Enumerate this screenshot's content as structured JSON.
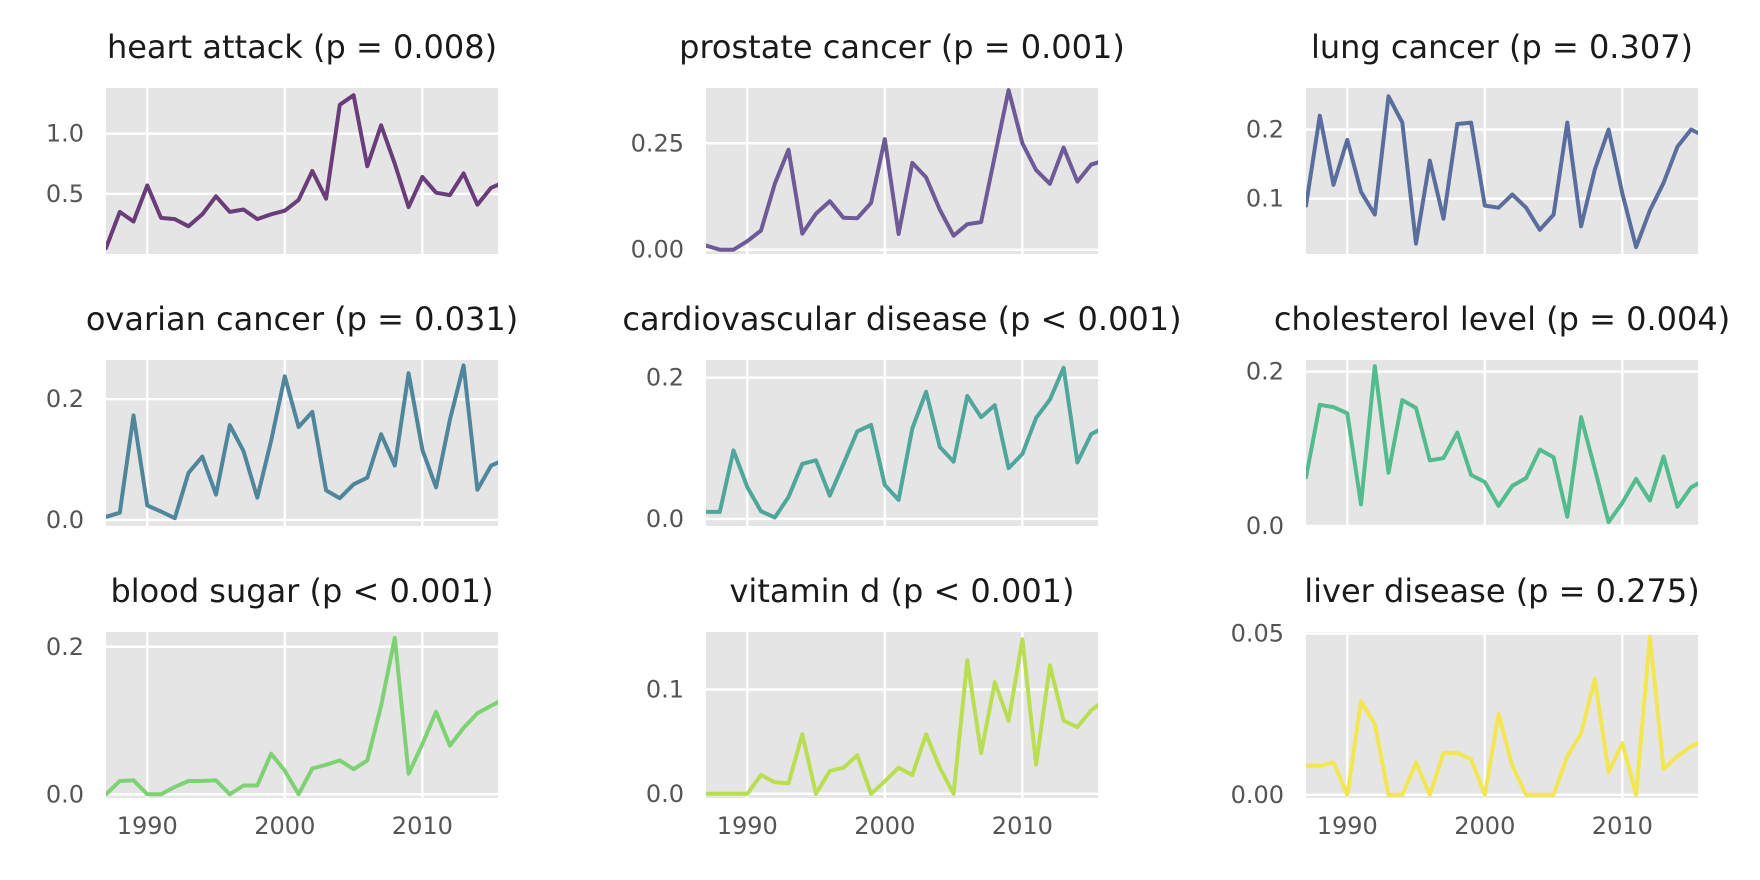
{
  "chart_data": [
    {
      "type": "line",
      "title": "heart attack (p = 0.008)",
      "color": "#6a3d7a",
      "x_range": [
        1987,
        2015.5
      ],
      "ylim": [
        0.0,
        1.38
      ],
      "y_ticks": [
        {
          "value": 0.5,
          "label": "0.5"
        },
        {
          "value": 1.0,
          "label": "1.0"
        }
      ],
      "x_ticks": [
        {
          "value": 1990,
          "label": ""
        },
        {
          "value": 2000,
          "label": ""
        },
        {
          "value": 2010,
          "label": ""
        }
      ],
      "x": [
        1987,
        1988,
        1989,
        1990,
        1991,
        1992,
        1993,
        1994,
        1995,
        1996,
        1997,
        1998,
        1999,
        2000,
        2001,
        2002,
        2003,
        2004,
        2005,
        2006,
        2007,
        2008,
        2009,
        2010,
        2011,
        2012,
        2013,
        2014,
        2015,
        2016
      ],
      "y": [
        0.05,
        0.35,
        0.27,
        0.57,
        0.3,
        0.29,
        0.23,
        0.33,
        0.48,
        0.35,
        0.37,
        0.29,
        0.33,
        0.36,
        0.45,
        0.69,
        0.46,
        1.24,
        1.32,
        0.73,
        1.07,
        0.75,
        0.39,
        0.64,
        0.51,
        0.49,
        0.67,
        0.41,
        0.55,
        0.6
      ]
    },
    {
      "type": "line",
      "title": "prostate cancer (p = 0.001)",
      "color": "#6d5a96",
      "x_range": [
        1987,
        2015.5
      ],
      "ylim": [
        -0.01,
        0.38
      ],
      "y_ticks": [
        {
          "value": 0.0,
          "label": "0.00"
        },
        {
          "value": 0.25,
          "label": "0.25"
        }
      ],
      "x_ticks": [
        {
          "value": 1990,
          "label": ""
        },
        {
          "value": 2000,
          "label": ""
        },
        {
          "value": 2010,
          "label": ""
        }
      ],
      "x": [
        1987,
        1988,
        1989,
        1990,
        1991,
        1992,
        1993,
        1994,
        1995,
        1996,
        1997,
        1998,
        1999,
        2000,
        2001,
        2002,
        2003,
        2004,
        2005,
        2006,
        2007,
        2008,
        2009,
        2010,
        2011,
        2012,
        2013,
        2014,
        2015,
        2016
      ],
      "y": [
        0.01,
        0.0,
        0.0,
        0.02,
        0.045,
        0.155,
        0.235,
        0.038,
        0.085,
        0.114,
        0.075,
        0.074,
        0.11,
        0.26,
        0.037,
        0.204,
        0.17,
        0.094,
        0.033,
        0.06,
        0.065,
        0.22,
        0.375,
        0.25,
        0.187,
        0.155,
        0.24,
        0.16,
        0.2,
        0.21
      ]
    },
    {
      "type": "line",
      "title": "lung cancer (p = 0.307)",
      "color": "#5a6e9e",
      "x_range": [
        1987,
        2015.5
      ],
      "ylim": [
        0.02,
        0.26
      ],
      "y_ticks": [
        {
          "value": 0.1,
          "label": "0.1"
        },
        {
          "value": 0.2,
          "label": "0.2"
        }
      ],
      "x_ticks": [
        {
          "value": 1990,
          "label": ""
        },
        {
          "value": 2000,
          "label": ""
        },
        {
          "value": 2010,
          "label": ""
        }
      ],
      "x": [
        1987,
        1988,
        1989,
        1990,
        1991,
        1992,
        1993,
        1994,
        1995,
        1996,
        1997,
        1998,
        1999,
        2000,
        2001,
        2002,
        2003,
        2004,
        2005,
        2006,
        2007,
        2008,
        2009,
        2010,
        2011,
        2012,
        2013,
        2014,
        2015,
        2016
      ],
      "y": [
        0.09,
        0.22,
        0.12,
        0.185,
        0.11,
        0.077,
        0.248,
        0.21,
        0.035,
        0.155,
        0.071,
        0.208,
        0.21,
        0.09,
        0.087,
        0.106,
        0.087,
        0.055,
        0.077,
        0.21,
        0.06,
        0.142,
        0.2,
        0.107,
        0.03,
        0.083,
        0.123,
        0.175,
        0.2,
        0.19
      ]
    },
    {
      "type": "line",
      "title": "ovarian cancer (p = 0.031)",
      "color": "#4f869c",
      "x_range": [
        1987,
        2015.5
      ],
      "ylim": [
        -0.01,
        0.265
      ],
      "y_ticks": [
        {
          "value": 0.0,
          "label": "0.0"
        },
        {
          "value": 0.2,
          "label": "0.2"
        }
      ],
      "x_ticks": [
        {
          "value": 1990,
          "label": ""
        },
        {
          "value": 2000,
          "label": ""
        },
        {
          "value": 2010,
          "label": ""
        }
      ],
      "x": [
        1987,
        1988,
        1989,
        1990,
        1991,
        1992,
        1993,
        1994,
        1995,
        1996,
        1997,
        1998,
        1999,
        2000,
        2001,
        2002,
        2003,
        2004,
        2005,
        2006,
        2007,
        2008,
        2009,
        2010,
        2011,
        2012,
        2013,
        2014,
        2015,
        2016
      ],
      "y": [
        0.005,
        0.012,
        0.173,
        0.024,
        0.014,
        0.003,
        0.078,
        0.105,
        0.042,
        0.157,
        0.114,
        0.037,
        0.131,
        0.238,
        0.154,
        0.179,
        0.049,
        0.036,
        0.059,
        0.07,
        0.142,
        0.09,
        0.243,
        0.116,
        0.054,
        0.166,
        0.256,
        0.05,
        0.09,
        0.1
      ]
    },
    {
      "type": "line",
      "title": "cardiovascular disease (p < 0.001)",
      "color": "#4fa69a",
      "x_range": [
        1987,
        2015.5
      ],
      "ylim": [
        -0.01,
        0.225
      ],
      "y_ticks": [
        {
          "value": 0.0,
          "label": "0.0"
        },
        {
          "value": 0.2,
          "label": "0.2"
        }
      ],
      "x_ticks": [
        {
          "value": 1990,
          "label": ""
        },
        {
          "value": 2000,
          "label": ""
        },
        {
          "value": 2010,
          "label": ""
        }
      ],
      "x": [
        1987,
        1988,
        1989,
        1990,
        1991,
        1992,
        1993,
        1994,
        1995,
        1996,
        1997,
        1998,
        1999,
        2000,
        2001,
        2002,
        2003,
        2004,
        2005,
        2006,
        2007,
        2008,
        2009,
        2010,
        2011,
        2012,
        2013,
        2014,
        2015,
        2016
      ],
      "y": [
        0.01,
        0.01,
        0.097,
        0.045,
        0.011,
        0.002,
        0.031,
        0.078,
        0.083,
        0.033,
        0.078,
        0.124,
        0.133,
        0.048,
        0.027,
        0.128,
        0.18,
        0.102,
        0.081,
        0.174,
        0.144,
        0.161,
        0.072,
        0.092,
        0.143,
        0.169,
        0.214,
        0.08,
        0.12,
        0.13
      ]
    },
    {
      "type": "line",
      "title": "cholesterol level (p = 0.004)",
      "color": "#52bc8e",
      "x_range": [
        1987,
        2015.5
      ],
      "ylim": [
        0.0,
        0.215
      ],
      "y_ticks": [
        {
          "value": 0.0,
          "label": "0.0"
        },
        {
          "value": 0.2,
          "label": "0.2"
        }
      ],
      "x_ticks": [
        {
          "value": 1990,
          "label": ""
        },
        {
          "value": 2000,
          "label": ""
        },
        {
          "value": 2010,
          "label": ""
        }
      ],
      "x": [
        1987,
        1988,
        1989,
        1990,
        1991,
        1992,
        1993,
        1994,
        1995,
        1996,
        1997,
        1998,
        1999,
        2000,
        2001,
        2002,
        2003,
        2004,
        2005,
        2006,
        2007,
        2008,
        2009,
        2010,
        2011,
        2012,
        2013,
        2014,
        2015,
        2016
      ],
      "y": [
        0.063,
        0.157,
        0.154,
        0.146,
        0.028,
        0.207,
        0.069,
        0.163,
        0.153,
        0.085,
        0.088,
        0.121,
        0.066,
        0.057,
        0.026,
        0.052,
        0.062,
        0.099,
        0.089,
        0.012,
        0.141,
        0.074,
        0.005,
        0.03,
        0.061,
        0.033,
        0.09,
        0.025,
        0.05,
        0.06
      ]
    },
    {
      "type": "line",
      "title": "blood sugar (p < 0.001)",
      "color": "#7ed274",
      "x_range": [
        1987,
        2015.5
      ],
      "ylim": [
        -0.005,
        0.22
      ],
      "y_ticks": [
        {
          "value": 0.0,
          "label": "0.0"
        },
        {
          "value": 0.2,
          "label": "0.2"
        }
      ],
      "x_ticks": [
        {
          "value": 1990,
          "label": "1990"
        },
        {
          "value": 2000,
          "label": "2000"
        },
        {
          "value": 2010,
          "label": "2010"
        }
      ],
      "x": [
        1987,
        1988,
        1989,
        1990,
        1991,
        1992,
        1993,
        1994,
        1995,
        1996,
        1997,
        1998,
        1999,
        2000,
        2001,
        2002,
        2003,
        2004,
        2005,
        2006,
        2007,
        2008,
        2009,
        2010,
        2011,
        2012,
        2013,
        2014,
        2015,
        2016
      ],
      "y": [
        0.0,
        0.018,
        0.019,
        0.0,
        0.0,
        0.01,
        0.018,
        0.018,
        0.019,
        0.0,
        0.012,
        0.012,
        0.055,
        0.032,
        0.0,
        0.035,
        0.04,
        0.046,
        0.034,
        0.046,
        0.12,
        0.212,
        0.028,
        0.068,
        0.112,
        0.066,
        0.09,
        0.11,
        0.12,
        0.13
      ]
    },
    {
      "type": "line",
      "title": "vitamin d (p < 0.001)",
      "color": "#bade52",
      "x_range": [
        1987,
        2015.5
      ],
      "ylim": [
        -0.004,
        0.155
      ],
      "y_ticks": [
        {
          "value": 0.0,
          "label": "0.0"
        },
        {
          "value": 0.1,
          "label": "0.1"
        }
      ],
      "x_ticks": [
        {
          "value": 1990,
          "label": "1990"
        },
        {
          "value": 2000,
          "label": "2000"
        },
        {
          "value": 2010,
          "label": "2010"
        }
      ],
      "x": [
        1987,
        1988,
        1989,
        1990,
        1991,
        1992,
        1993,
        1994,
        1995,
        1996,
        1997,
        1998,
        1999,
        2000,
        2001,
        2002,
        2003,
        2004,
        2005,
        2006,
        2007,
        2008,
        2009,
        2010,
        2011,
        2012,
        2013,
        2014,
        2015,
        2016
      ],
      "y": [
        0.0,
        0.0,
        0.0,
        0.0,
        0.018,
        0.011,
        0.01,
        0.057,
        0.0,
        0.022,
        0.025,
        0.037,
        0.0,
        0.012,
        0.025,
        0.018,
        0.057,
        0.025,
        0.0,
        0.128,
        0.039,
        0.107,
        0.07,
        0.148,
        0.028,
        0.123,
        0.07,
        0.064,
        0.08,
        0.09
      ]
    },
    {
      "type": "line",
      "title": "liver disease (p = 0.275)",
      "color": "#f2e653",
      "x_range": [
        1987,
        2015.5
      ],
      "ylim": [
        -0.001,
        0.0505
      ],
      "y_ticks": [
        {
          "value": 0.0,
          "label": "0.00"
        },
        {
          "value": 0.05,
          "label": "0.05"
        }
      ],
      "x_ticks": [
        {
          "value": 1990,
          "label": "1990"
        },
        {
          "value": 2000,
          "label": "2000"
        },
        {
          "value": 2010,
          "label": "2010"
        }
      ],
      "x": [
        1987,
        1988,
        1989,
        1990,
        1991,
        1992,
        1993,
        1994,
        1995,
        1996,
        1997,
        1998,
        1999,
        2000,
        2001,
        2002,
        2003,
        2004,
        2005,
        2006,
        2007,
        2008,
        2009,
        2010,
        2011,
        2012,
        2013,
        2014,
        2015,
        2016
      ],
      "y": [
        0.009,
        0.009,
        0.01,
        0.0,
        0.029,
        0.022,
        0.0,
        0.0,
        0.01,
        0.0,
        0.013,
        0.013,
        0.011,
        0.0,
        0.025,
        0.009,
        0.0,
        0.0,
        0.0,
        0.012,
        0.019,
        0.036,
        0.007,
        0.016,
        0.0,
        0.049,
        0.008,
        0.012,
        0.015,
        0.017
      ]
    }
  ]
}
